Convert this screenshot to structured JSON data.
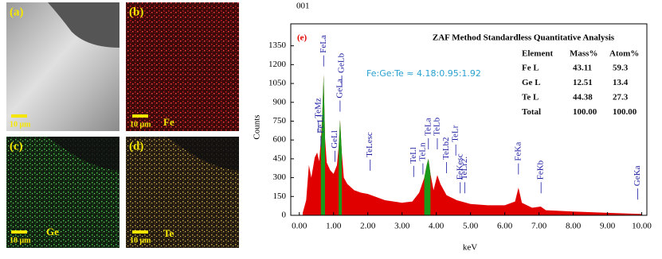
{
  "panels": [
    {
      "label": "(a)",
      "scale": "10 μm"
    },
    {
      "label": "(b)",
      "scale": "10 μm",
      "element": "Fe"
    },
    {
      "label": "(c)",
      "scale": "10 μm",
      "element": "Ge"
    },
    {
      "label": "(d)",
      "scale": "10 μm",
      "element": "Te"
    }
  ],
  "chart_data": {
    "type": "area",
    "panel_label": "(e)",
    "corner_label": "001",
    "x_label": "keV",
    "y_label": "Counts",
    "ratio": "Fe:Ge:Te ≈ 4.18:0.95:1.92",
    "table": {
      "title": "ZAF Method Standardless Quantitative Analysis",
      "header": [
        "Element",
        "Mass%",
        "Atom%"
      ],
      "rows": [
        [
          "Fe L",
          "43.11",
          "59.3"
        ],
        [
          "Ge L",
          "12.51",
          "13.4"
        ],
        [
          "Te L",
          "44.38",
          "27.3"
        ],
        [
          "Total",
          "100.00",
          "100.00"
        ]
      ]
    },
    "x": [
      0.1,
      0.2,
      0.28,
      0.35,
      0.45,
      0.52,
      0.58,
      0.63,
      0.67,
      0.71,
      0.75,
      0.8,
      0.9,
      1.0,
      1.1,
      1.15,
      1.19,
      1.24,
      1.3,
      1.4,
      1.6,
      1.8,
      2.0,
      2.2,
      2.5,
      3.0,
      3.3,
      3.5,
      3.65,
      3.72,
      3.77,
      3.83,
      3.92,
      4.03,
      4.12,
      4.3,
      4.6,
      5.0,
      5.5,
      6.0,
      6.3,
      6.4,
      6.5,
      6.8,
      7.05,
      7.2,
      8.0,
      9.0,
      10.0
    ],
    "series": [
      {
        "color": "#e00000",
        "values": [
          20,
          120,
          400,
          300,
          460,
          500,
          430,
          600,
          800,
          1120,
          620,
          420,
          360,
          330,
          400,
          550,
          760,
          500,
          300,
          250,
          200,
          180,
          170,
          150,
          120,
          100,
          110,
          180,
          300,
          400,
          450,
          330,
          200,
          320,
          250,
          160,
          120,
          90,
          80,
          80,
          110,
          220,
          100,
          60,
          70,
          40,
          30,
          20,
          10
        ]
      },
      {
        "color": "#1a9a1a",
        "values": [
          null,
          null,
          null,
          null,
          null,
          null,
          null,
          500,
          800,
          1120,
          620,
          null,
          null,
          null,
          null,
          550,
          760,
          500,
          null,
          null,
          null,
          null,
          null,
          null,
          null,
          null,
          null,
          null,
          300,
          400,
          450,
          330,
          null,
          null,
          null,
          null,
          null,
          null,
          null,
          null,
          null,
          null,
          null,
          null,
          null,
          null,
          null,
          null,
          null
        ]
      }
    ],
    "annotations": [
      {
        "text": "TeMz",
        "x": 0.56,
        "y": 640
      },
      {
        "text": "Fe Ll",
        "x": 0.63,
        "y": 520
      },
      {
        "text": "FeLa",
        "x": 0.71,
        "y": 1160
      },
      {
        "text": "GeLl",
        "x": 1.04,
        "y": 400
      },
      {
        "text": "GeLa",
        "x": 1.19,
        "y": 800
      },
      {
        "text": "GeLb",
        "x": 1.24,
        "y": 1000
      },
      {
        "text": "TeLesc",
        "x": 2.07,
        "y": 330
      },
      {
        "text": "TeLl",
        "x": 3.34,
        "y": 280
      },
      {
        "text": "TeLn",
        "x": 3.61,
        "y": 300
      },
      {
        "text": "TeLa",
        "x": 3.77,
        "y": 500
      },
      {
        "text": "TeLb",
        "x": 4.03,
        "y": 500
      },
      {
        "text": "TeLb2",
        "x": 4.3,
        "y": 310
      },
      {
        "text": "FeKesc",
        "x": 4.7,
        "y": 150
      },
      {
        "text": "TeLr2.",
        "x": 4.83,
        "y": 150
      },
      {
        "text": "TeLr",
        "x": 4.57,
        "y": 450
      },
      {
        "text": "FeKa",
        "x": 6.4,
        "y": 300
      },
      {
        "text": "FeKb",
        "x": 7.06,
        "y": 150
      },
      {
        "text": "GeKa",
        "x": 9.88,
        "y": 100
      }
    ],
    "xlim": [
      -0.25,
      10.15
    ],
    "ylim": [
      0,
      1525
    ],
    "xticks": [
      {
        "value": 0,
        "label": "0.00"
      },
      {
        "value": 1,
        "label": "1.00"
      },
      {
        "value": 2,
        "label": "2.00"
      },
      {
        "value": 3,
        "label": "3.00"
      },
      {
        "value": 4,
        "label": "4.00"
      },
      {
        "value": 5,
        "label": "5.00"
      },
      {
        "value": 6,
        "label": "6.00"
      },
      {
        "value": 7,
        "label": "7.00"
      },
      {
        "value": 8,
        "label": "8.00"
      },
      {
        "value": 9,
        "label": "9.00"
      },
      {
        "value": 10,
        "label": "10.00"
      }
    ],
    "yticks": [
      0,
      150,
      300,
      450,
      600,
      750,
      900,
      1050,
      1200,
      1350
    ]
  }
}
